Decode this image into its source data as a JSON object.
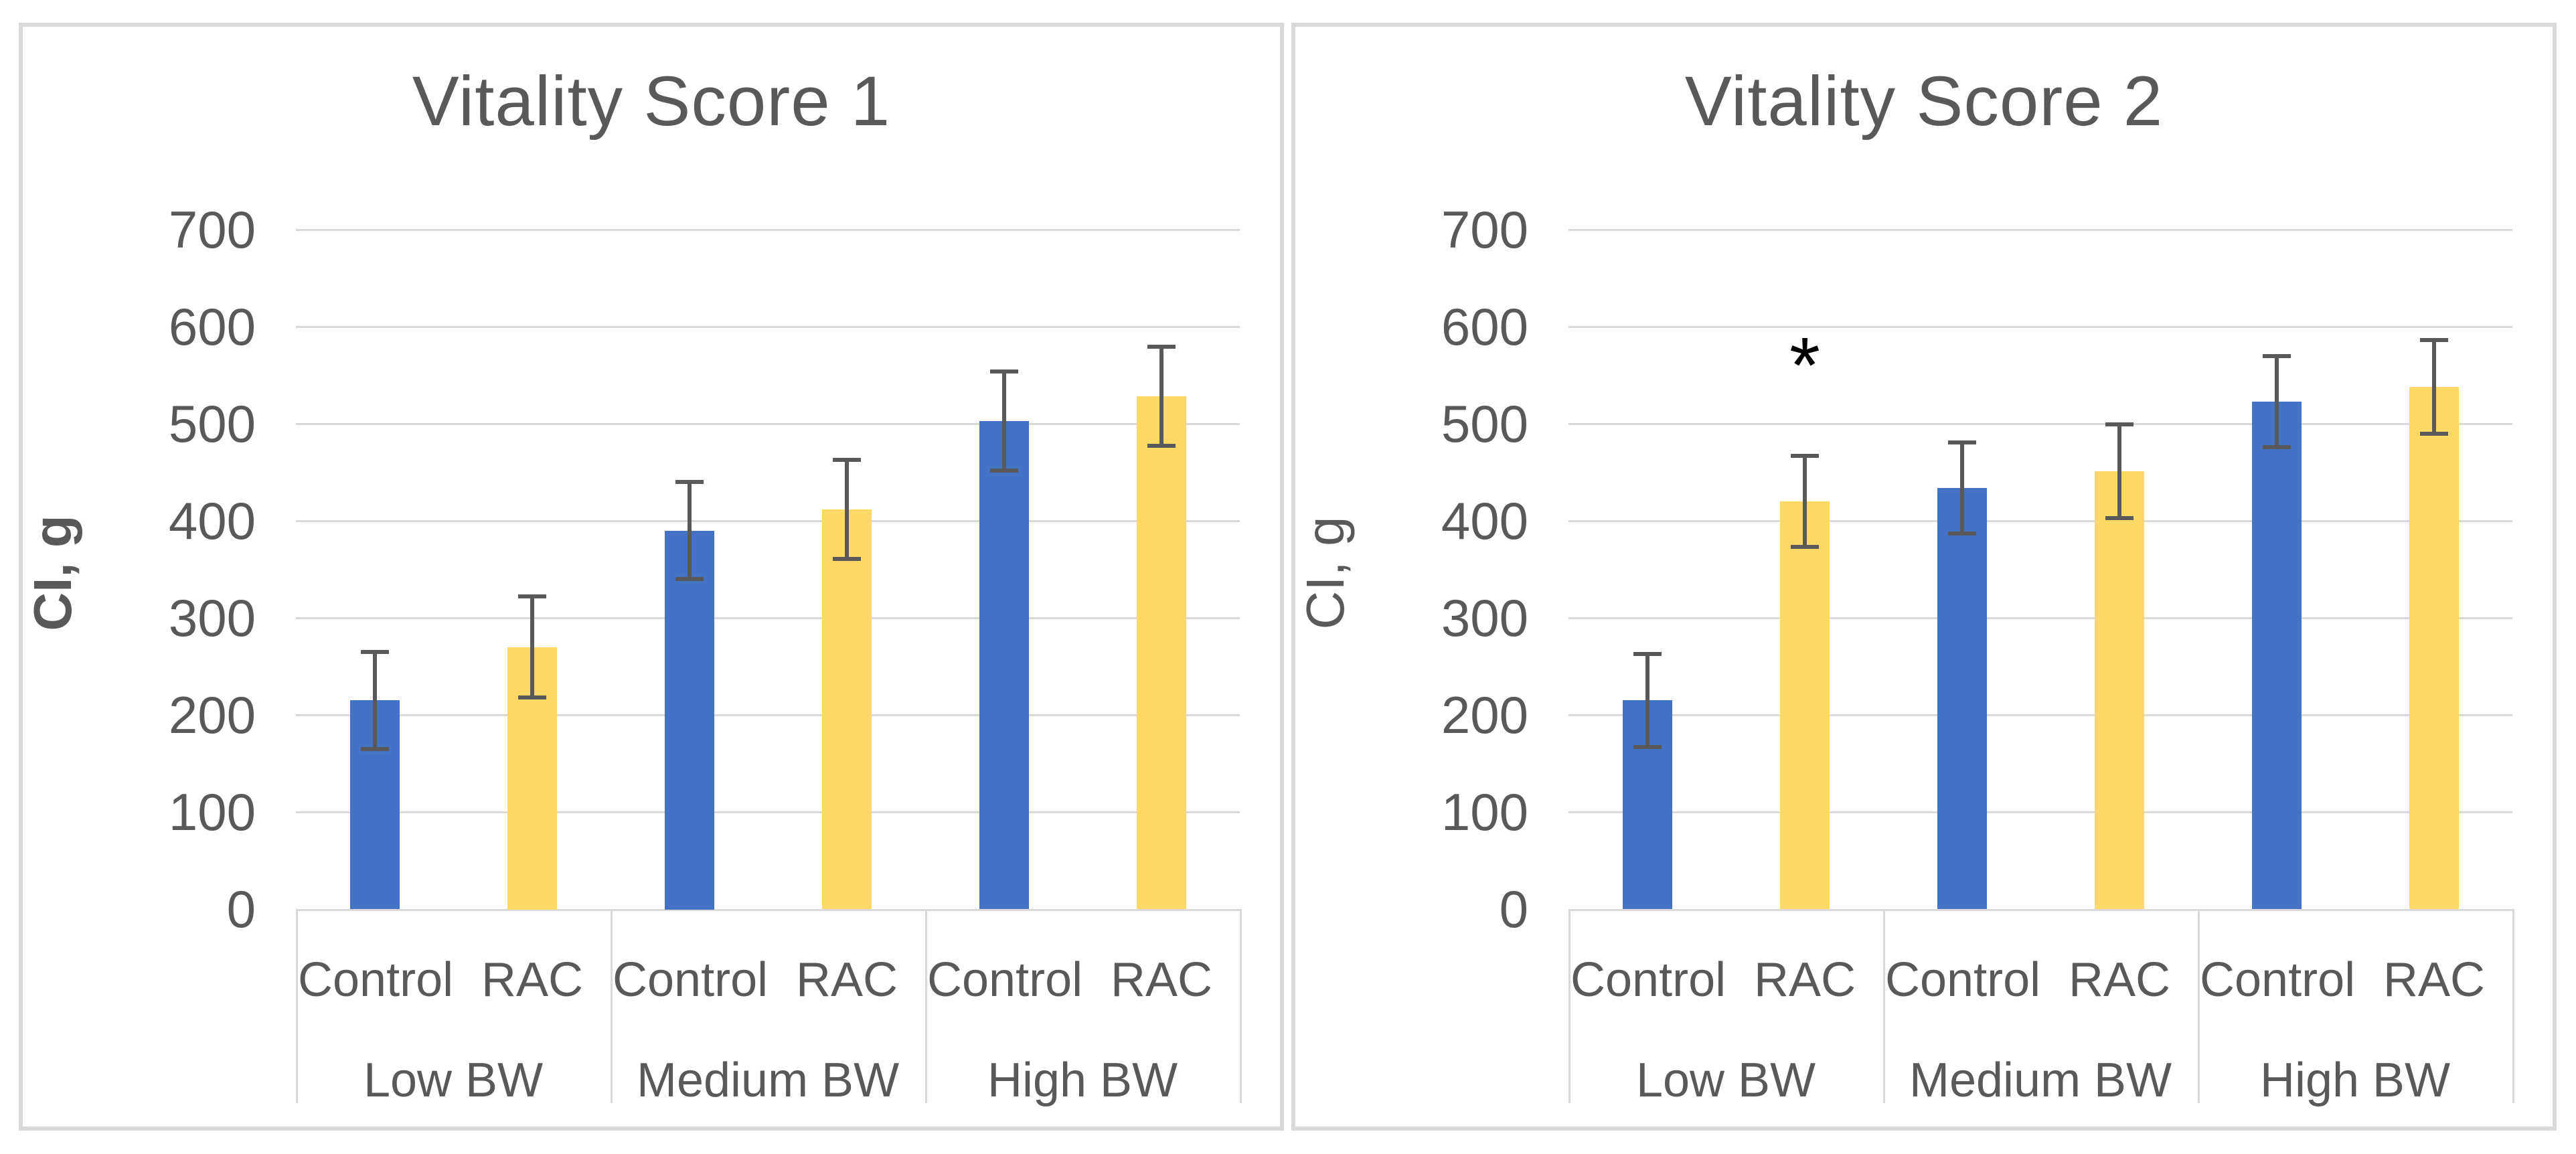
{
  "colors": {
    "control_bar": "#4472C4",
    "rac_bar": "#FFD966",
    "error_bar": "#595959",
    "gridline": "#D9D9D9",
    "panel_border": "#D9D9D9",
    "text": "#595959",
    "annotation": "#000000",
    "background": "#FFFFFF"
  },
  "chart_data": [
    {
      "type": "bar",
      "title": "Vitality Score 1",
      "ylabel": "CI, g",
      "ylabel_bold": true,
      "ylim": [
        0,
        700
      ],
      "ytick_step": 100,
      "yticks": [
        700,
        600,
        500,
        400,
        300,
        200,
        100,
        0
      ],
      "grid": true,
      "legend": "none",
      "categories": [
        "Low BW",
        "Medium BW",
        "High BW"
      ],
      "series_order_per_group": [
        "Control",
        "RAC"
      ],
      "series": [
        {
          "name": "Control",
          "color_key": "control_bar",
          "values": [
            215,
            390,
            503
          ],
          "errors": [
            50,
            50,
            51
          ]
        },
        {
          "name": "RAC",
          "color_key": "rac_bar",
          "values": [
            270,
            412,
            528
          ],
          "errors": [
            52,
            51,
            51
          ]
        }
      ],
      "annotations": []
    },
    {
      "type": "bar",
      "title": "Vitality Score 2",
      "ylabel": "CI, g",
      "ylabel_bold": false,
      "ylim": [
        0,
        700
      ],
      "ytick_step": 100,
      "yticks": [
        700,
        600,
        500,
        400,
        300,
        200,
        100,
        0
      ],
      "grid": true,
      "legend": "none",
      "categories": [
        "Low BW",
        "Medium BW",
        "High BW"
      ],
      "series_order_per_group": [
        "Control",
        "RAC"
      ],
      "series": [
        {
          "name": "Control",
          "color_key": "control_bar",
          "values": [
            215,
            434,
            523
          ],
          "errors": [
            48,
            47,
            47
          ]
        },
        {
          "name": "RAC",
          "color_key": "rac_bar",
          "values": [
            420,
            451,
            538
          ],
          "errors": [
            47,
            48,
            48
          ]
        }
      ],
      "annotations": [
        {
          "text": "*",
          "group_index": 0,
          "series_index": 1,
          "y_value": 578
        }
      ]
    }
  ]
}
